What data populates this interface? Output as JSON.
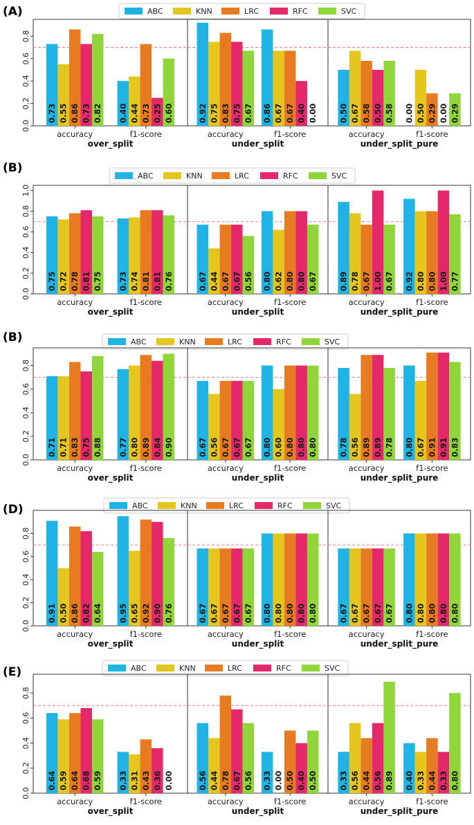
{
  "legend": [
    "ABC",
    "KNN",
    "LRC",
    "RFC",
    "SVC"
  ],
  "colors": {
    "ABC": "#1fb4e3",
    "KNN": "#e5c61f",
    "LRC": "#e77b22",
    "RFC": "#e5286a",
    "SVC": "#8fd63a",
    "threshold": "#f08080"
  },
  "chart_data": [
    {
      "type": "bar",
      "label": "(A)",
      "ylim": [
        0,
        0.95
      ],
      "yticks": [
        "0.0",
        "0.2",
        "0.4",
        "0.6",
        "0.8"
      ],
      "threshold": 0.7,
      "categories": [
        "accuracy",
        "f1-score"
      ],
      "panels": [
        {
          "title": "over_split",
          "series": [
            {
              "name": "ABC",
              "values": [
                0.73,
                0.4
              ]
            },
            {
              "name": "KNN",
              "values": [
                0.55,
                0.44
              ]
            },
            {
              "name": "LRC",
              "values": [
                0.86,
                0.73
              ]
            },
            {
              "name": "RFC",
              "values": [
                0.73,
                0.25
              ]
            },
            {
              "name": "SVC",
              "values": [
                0.82,
                0.6
              ]
            }
          ]
        },
        {
          "title": "under_split",
          "series": [
            {
              "name": "ABC",
              "values": [
                0.92,
                0.86
              ]
            },
            {
              "name": "KNN",
              "values": [
                0.75,
                0.67
              ]
            },
            {
              "name": "LRC",
              "values": [
                0.83,
                0.67
              ]
            },
            {
              "name": "RFC",
              "values": [
                0.75,
                0.4
              ]
            },
            {
              "name": "SVC",
              "values": [
                0.67,
                0.0
              ]
            }
          ]
        },
        {
          "title": "under_split_pure",
          "series": [
            {
              "name": "ABC",
              "values": [
                0.5,
                0.0
              ]
            },
            {
              "name": "KNN",
              "values": [
                0.67,
                0.5
              ]
            },
            {
              "name": "LRC",
              "values": [
                0.58,
                0.29
              ]
            },
            {
              "name": "RFC",
              "values": [
                0.5,
                0.0
              ]
            },
            {
              "name": "SVC",
              "values": [
                0.58,
                0.29
              ]
            }
          ]
        }
      ]
    },
    {
      "type": "bar",
      "label": "(B)",
      "ylim": [
        0,
        1.05
      ],
      "yticks": [
        "0.0",
        "0.2",
        "0.4",
        "0.6",
        "0.8",
        "1.0"
      ],
      "threshold": 0.7,
      "categories": [
        "accuracy",
        "f1-score"
      ],
      "panels": [
        {
          "title": "over_split",
          "series": [
            {
              "name": "ABC",
              "values": [
                0.75,
                0.73
              ]
            },
            {
              "name": "KNN",
              "values": [
                0.72,
                0.74
              ]
            },
            {
              "name": "LRC",
              "values": [
                0.78,
                0.81
              ]
            },
            {
              "name": "RFC",
              "values": [
                0.81,
                0.81
              ]
            },
            {
              "name": "SVC",
              "values": [
                0.75,
                0.76
              ]
            }
          ]
        },
        {
          "title": "under_split",
          "series": [
            {
              "name": "ABC",
              "values": [
                0.67,
                0.8
              ]
            },
            {
              "name": "KNN",
              "values": [
                0.44,
                0.62
              ]
            },
            {
              "name": "LRC",
              "values": [
                0.67,
                0.8
              ]
            },
            {
              "name": "RFC",
              "values": [
                0.67,
                0.8
              ]
            },
            {
              "name": "SVC",
              "values": [
                0.56,
                0.67
              ]
            }
          ]
        },
        {
          "title": "under_split_pure",
          "series": [
            {
              "name": "ABC",
              "values": [
                0.89,
                0.92
              ]
            },
            {
              "name": "KNN",
              "values": [
                0.78,
                0.8
              ]
            },
            {
              "name": "LRC",
              "values": [
                0.67,
                0.8
              ]
            },
            {
              "name": "RFC",
              "values": [
                1.0,
                1.0
              ]
            },
            {
              "name": "SVC",
              "values": [
                0.67,
                0.77
              ]
            }
          ]
        }
      ]
    },
    {
      "type": "bar",
      "label": "(B)",
      "ylim": [
        0,
        0.95
      ],
      "yticks": [
        "0.0",
        "0.2",
        "0.4",
        "0.6",
        "0.8"
      ],
      "threshold": 0.7,
      "categories": [
        "accuracy",
        "f1-score"
      ],
      "panels": [
        {
          "title": "over_split",
          "series": [
            {
              "name": "ABC",
              "values": [
                0.71,
                0.77
              ]
            },
            {
              "name": "KNN",
              "values": [
                0.71,
                0.8
              ]
            },
            {
              "name": "LRC",
              "values": [
                0.83,
                0.89
              ]
            },
            {
              "name": "RFC",
              "values": [
                0.75,
                0.84
              ]
            },
            {
              "name": "SVC",
              "values": [
                0.88,
                0.9
              ]
            }
          ]
        },
        {
          "title": "under_split",
          "series": [
            {
              "name": "ABC",
              "values": [
                0.67,
                0.8
              ]
            },
            {
              "name": "KNN",
              "values": [
                0.56,
                0.6
              ]
            },
            {
              "name": "LRC",
              "values": [
                0.67,
                0.8
              ]
            },
            {
              "name": "RFC",
              "values": [
                0.67,
                0.8
              ]
            },
            {
              "name": "SVC",
              "values": [
                0.67,
                0.8
              ]
            }
          ]
        },
        {
          "title": "under_split_pure",
          "series": [
            {
              "name": "ABC",
              "values": [
                0.78,
                0.8
              ]
            },
            {
              "name": "KNN",
              "values": [
                0.56,
                0.67
              ]
            },
            {
              "name": "LRC",
              "values": [
                0.89,
                0.91
              ]
            },
            {
              "name": "RFC",
              "values": [
                0.89,
                0.91
              ]
            },
            {
              "name": "SVC",
              "values": [
                0.78,
                0.83
              ]
            }
          ]
        }
      ]
    },
    {
      "type": "bar",
      "label": "(D)",
      "ylim": [
        0,
        1.0
      ],
      "yticks": [
        "0.0",
        "0.2",
        "0.4",
        "0.6",
        "0.8"
      ],
      "threshold": 0.7,
      "categories": [
        "accuracy",
        "f1-score"
      ],
      "panels": [
        {
          "title": "over_split",
          "series": [
            {
              "name": "ABC",
              "values": [
                0.91,
                0.95
              ]
            },
            {
              "name": "KNN",
              "values": [
                0.5,
                0.65
              ]
            },
            {
              "name": "LRC",
              "values": [
                0.86,
                0.92
              ]
            },
            {
              "name": "RFC",
              "values": [
                0.82,
                0.9
              ]
            },
            {
              "name": "SVC",
              "values": [
                0.64,
                0.76
              ]
            }
          ]
        },
        {
          "title": "under_split",
          "series": [
            {
              "name": "ABC",
              "values": [
                0.67,
                0.8
              ]
            },
            {
              "name": "KNN",
              "values": [
                0.67,
                0.8
              ]
            },
            {
              "name": "LRC",
              "values": [
                0.67,
                0.8
              ]
            },
            {
              "name": "RFC",
              "values": [
                0.67,
                0.8
              ]
            },
            {
              "name": "SVC",
              "values": [
                0.67,
                0.8
              ]
            }
          ]
        },
        {
          "title": "under_split_pure",
          "series": [
            {
              "name": "ABC",
              "values": [
                0.67,
                0.8
              ]
            },
            {
              "name": "KNN",
              "values": [
                0.67,
                0.8
              ]
            },
            {
              "name": "LRC",
              "values": [
                0.67,
                0.8
              ]
            },
            {
              "name": "RFC",
              "values": [
                0.67,
                0.8
              ]
            },
            {
              "name": "SVC",
              "values": [
                0.67,
                0.8
              ]
            }
          ]
        }
      ]
    },
    {
      "type": "bar",
      "label": "(E)",
      "ylim": [
        0,
        0.95
      ],
      "yticks": [
        "0.0",
        "0.2",
        "0.4",
        "0.6",
        "0.8"
      ],
      "threshold": 0.7,
      "categories": [
        "accuracy",
        "f1-score"
      ],
      "panels": [
        {
          "title": "over_split",
          "series": [
            {
              "name": "ABC",
              "values": [
                0.64,
                0.33
              ]
            },
            {
              "name": "KNN",
              "values": [
                0.59,
                0.31
              ]
            },
            {
              "name": "LRC",
              "values": [
                0.64,
                0.43
              ]
            },
            {
              "name": "RFC",
              "values": [
                0.68,
                0.36
              ]
            },
            {
              "name": "SVC",
              "values": [
                0.59,
                0.0
              ]
            }
          ]
        },
        {
          "title": "under_split",
          "series": [
            {
              "name": "ABC",
              "values": [
                0.56,
                0.33
              ]
            },
            {
              "name": "KNN",
              "values": [
                0.44,
                0.0
              ]
            },
            {
              "name": "LRC",
              "values": [
                0.78,
                0.5
              ]
            },
            {
              "name": "RFC",
              "values": [
                0.67,
                0.4
              ]
            },
            {
              "name": "SVC",
              "values": [
                0.56,
                0.5
              ]
            }
          ]
        },
        {
          "title": "under_split_pure",
          "series": [
            {
              "name": "ABC",
              "values": [
                0.33,
                0.4
              ]
            },
            {
              "name": "KNN",
              "values": [
                0.56,
                0.33
              ]
            },
            {
              "name": "LRC",
              "values": [
                0.44,
                0.44
              ]
            },
            {
              "name": "RFC",
              "values": [
                0.56,
                0.33
              ]
            },
            {
              "name": "SVC",
              "values": [
                0.89,
                0.8
              ]
            }
          ]
        }
      ]
    }
  ]
}
